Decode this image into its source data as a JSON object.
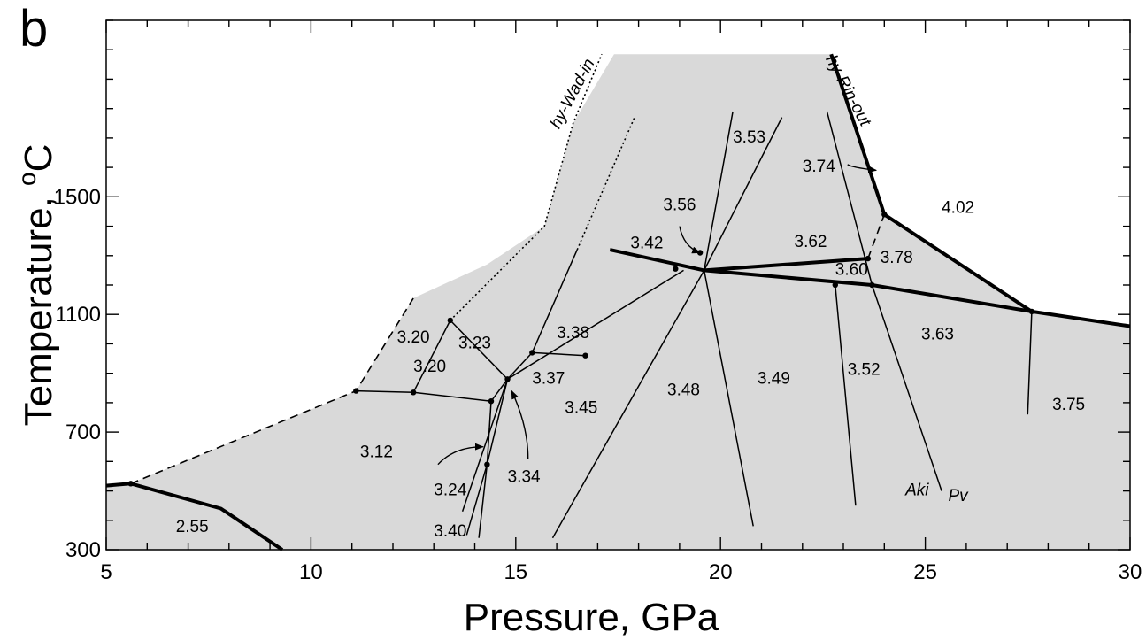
{
  "panel_label": "b",
  "chart_data": {
    "type": "phase-diagram",
    "xlabel": "Pressure, GPa",
    "ylabel": "Temperature, °C",
    "ylabel_parts": {
      "main": "Temperature, ",
      "sup": "o",
      "unit": "C"
    },
    "xlim": [
      5,
      30
    ],
    "ylim": [
      300,
      2100
    ],
    "xticks": [
      5,
      10,
      15,
      20,
      25,
      30
    ],
    "yticks": [
      300,
      700,
      1100,
      1500
    ],
    "colors": {
      "field_fill": "#d9d9d9",
      "line": "#000000",
      "background": "#ffffff"
    },
    "shaded_region": [
      [
        5,
        300
      ],
      [
        5,
        518
      ],
      [
        5.6,
        525
      ],
      [
        11.1,
        840
      ],
      [
        12.5,
        1155
      ],
      [
        14.3,
        1270
      ],
      [
        15.7,
        1400
      ],
      [
        16.4,
        1750
      ],
      [
        17.4,
        1985
      ],
      [
        22.7,
        1985
      ],
      [
        24.0,
        1440
      ],
      [
        27.6,
        1110
      ],
      [
        30,
        1060
      ],
      [
        30,
        300
      ]
    ],
    "boundaries": [
      {
        "id": "hy-Rin-out",
        "style": "heavy",
        "points": [
          [
            22.7,
            1985
          ],
          [
            24.0,
            1440
          ],
          [
            27.6,
            1110
          ],
          [
            30,
            1060
          ]
        ]
      },
      {
        "id": "low-t-boundary",
        "style": "heavy",
        "points": [
          [
            5,
            518
          ],
          [
            5.6,
            525
          ],
          [
            7.8,
            440
          ],
          [
            9.3,
            300
          ]
        ]
      },
      {
        "id": "mid-boundary",
        "style": "heavy",
        "points": [
          [
            17.3,
            1320
          ],
          [
            19.6,
            1250
          ],
          [
            23.7,
            1200
          ],
          [
            27.6,
            1110
          ]
        ]
      },
      {
        "id": "mid-boundary-upper",
        "style": "heavy",
        "points": [
          [
            19.6,
            1250
          ],
          [
            23.6,
            1290
          ]
        ]
      },
      {
        "id": "dashed-lower",
        "style": "dashed",
        "points": [
          [
            5.6,
            525
          ],
          [
            11.1,
            840
          ],
          [
            12.5,
            1155
          ]
        ]
      },
      {
        "id": "dotted-outer",
        "style": "dotted",
        "points": [
          [
            13.4,
            1080
          ],
          [
            15.7,
            1400
          ],
          [
            16.4,
            1750
          ],
          [
            17.1,
            1985
          ]
        ]
      },
      {
        "id": "dotted-inner",
        "style": "dotted",
        "points": [
          [
            16.5,
            1320
          ],
          [
            17.9,
            1770
          ]
        ]
      },
      {
        "id": "dashed-short",
        "style": "dashed",
        "points": [
          [
            23.6,
            1290
          ],
          [
            24.0,
            1440
          ]
        ]
      },
      {
        "id": "hy-Wad-in",
        "style": "thin",
        "points": [
          [
            11.1,
            840
          ],
          [
            12.5,
            835
          ],
          [
            13.4,
            1080
          ]
        ]
      },
      {
        "id": "t1",
        "style": "thin",
        "points": [
          [
            12.5,
            835
          ],
          [
            14.4,
            805
          ]
        ]
      },
      {
        "id": "t2",
        "style": "thin",
        "points": [
          [
            13.4,
            1080
          ],
          [
            14.8,
            880
          ]
        ]
      },
      {
        "id": "t3",
        "style": "thin",
        "points": [
          [
            14.4,
            805
          ],
          [
            14.8,
            880
          ]
        ]
      },
      {
        "id": "t4",
        "style": "thin",
        "points": [
          [
            14.8,
            880
          ],
          [
            15.4,
            970
          ],
          [
            16.7,
            960
          ]
        ]
      },
      {
        "id": "t5",
        "style": "thin",
        "points": [
          [
            15.4,
            970
          ],
          [
            16.5,
            1320
          ]
        ]
      },
      {
        "id": "t6",
        "style": "thin",
        "points": [
          [
            14.8,
            880
          ],
          [
            19.1,
            1250
          ]
        ]
      },
      {
        "id": "t7",
        "style": "thin",
        "points": [
          [
            14.8,
            880
          ],
          [
            14.3,
            590
          ],
          [
            13.8,
            350
          ]
        ]
      },
      {
        "id": "t8",
        "style": "thin",
        "points": [
          [
            14.8,
            880
          ],
          [
            13.7,
            430
          ]
        ]
      },
      {
        "id": "t9",
        "style": "thin",
        "points": [
          [
            14.3,
            590
          ],
          [
            14.1,
            340
          ]
        ]
      },
      {
        "id": "t10",
        "style": "thin",
        "points": [
          [
            14.4,
            805
          ],
          [
            14.3,
            590
          ]
        ]
      },
      {
        "id": "t11",
        "style": "thin",
        "points": [
          [
            15.9,
            340
          ],
          [
            19.6,
            1250
          ]
        ]
      },
      {
        "id": "t12",
        "style": "thin",
        "points": [
          [
            19.6,
            1250
          ],
          [
            20.3,
            1790
          ]
        ]
      },
      {
        "id": "t13",
        "style": "thin",
        "points": [
          [
            19.6,
            1250
          ],
          [
            20.8,
            380
          ]
        ]
      },
      {
        "id": "t14",
        "style": "thin",
        "points": [
          [
            19.6,
            1250
          ],
          [
            21.5,
            1770
          ]
        ]
      },
      {
        "id": "t15",
        "style": "thin",
        "points": [
          [
            22.8,
            1200
          ],
          [
            23.3,
            450
          ]
        ]
      },
      {
        "id": "t16",
        "style": "thin",
        "points": [
          [
            22.6,
            1790
          ],
          [
            23.7,
            1200
          ],
          [
            25.4,
            500
          ]
        ]
      },
      {
        "id": "t17",
        "style": "thin",
        "points": [
          [
            27.6,
            1110
          ],
          [
            27.5,
            760
          ]
        ]
      }
    ],
    "points": [
      [
        5.6,
        525
      ],
      [
        11.1,
        840
      ],
      [
        12.5,
        835
      ],
      [
        13.4,
        1080
      ],
      [
        14.4,
        805
      ],
      [
        14.8,
        880
      ],
      [
        15.4,
        970
      ],
      [
        16.7,
        960
      ],
      [
        14.3,
        590
      ],
      [
        19.5,
        1310
      ],
      [
        18.9,
        1255
      ],
      [
        22.8,
        1200
      ],
      [
        23.7,
        1200
      ],
      [
        23.6,
        1290
      ],
      [
        24.0,
        1440
      ],
      [
        27.6,
        1110
      ]
    ],
    "field_labels": [
      {
        "text": "2.55",
        "x": 7.1,
        "y": 375
      },
      {
        "text": "3.12",
        "x": 11.6,
        "y": 630
      },
      {
        "text": "3.20",
        "x": 12.5,
        "y": 1020
      },
      {
        "text": "3.20",
        "x": 12.9,
        "y": 920
      },
      {
        "text": "3.23",
        "x": 14.0,
        "y": 1000
      },
      {
        "text": "3.24",
        "x": 13.4,
        "y": 500
      },
      {
        "text": "3.34",
        "x": 15.2,
        "y": 545
      },
      {
        "text": "3.37",
        "x": 15.8,
        "y": 880
      },
      {
        "text": "3.38",
        "x": 16.4,
        "y": 1035
      },
      {
        "text": "3.40",
        "x": 13.4,
        "y": 360
      },
      {
        "text": "3.45",
        "x": 16.6,
        "y": 780
      },
      {
        "text": "3.42",
        "x": 18.2,
        "y": 1340
      },
      {
        "text": "3.48",
        "x": 19.1,
        "y": 840
      },
      {
        "text": "3.49",
        "x": 21.3,
        "y": 880
      },
      {
        "text": "3.52",
        "x": 23.5,
        "y": 910
      },
      {
        "text": "3.53",
        "x": 20.7,
        "y": 1700
      },
      {
        "text": "3.56",
        "x": 19.0,
        "y": 1470
      },
      {
        "text": "3.62",
        "x": 22.2,
        "y": 1345
      },
      {
        "text": "3.60",
        "x": 23.2,
        "y": 1250
      },
      {
        "text": "3.74",
        "x": 22.4,
        "y": 1600
      },
      {
        "text": "3.78",
        "x": 24.3,
        "y": 1290
      },
      {
        "text": "3.63",
        "x": 25.3,
        "y": 1030
      },
      {
        "text": "4.02",
        "x": 25.8,
        "y": 1460
      },
      {
        "text": "3.75",
        "x": 28.5,
        "y": 790
      }
    ],
    "phase_labels": [
      {
        "text": "Aki",
        "x": 24.8,
        "y": 500
      },
      {
        "text": "Pv",
        "x": 25.8,
        "y": 480
      }
    ],
    "curve_labels": [
      {
        "text": "hy-Wad-in",
        "x": 16.4,
        "y": 1850,
        "angle": -62
      },
      {
        "text": "hy-Rin-out",
        "x": 23.1,
        "y": 1860,
        "angle": 62
      }
    ],
    "annotation_arrows": [
      {
        "from": [
          13.1,
          590
        ],
        "ctrl": [
          13.5,
          650
        ],
        "to": [
          14.2,
          650
        ]
      },
      {
        "from": [
          15.3,
          610
        ],
        "ctrl": [
          15.3,
          720
        ],
        "to": [
          14.9,
          840
        ]
      },
      {
        "from": [
          19.0,
          1400
        ],
        "ctrl": [
          19.1,
          1330
        ],
        "to": [
          19.5,
          1310
        ]
      },
      {
        "from": [
          23.1,
          1610
        ],
        "ctrl": [
          23.2,
          1600
        ],
        "to": [
          23.8,
          1590
        ]
      }
    ]
  }
}
